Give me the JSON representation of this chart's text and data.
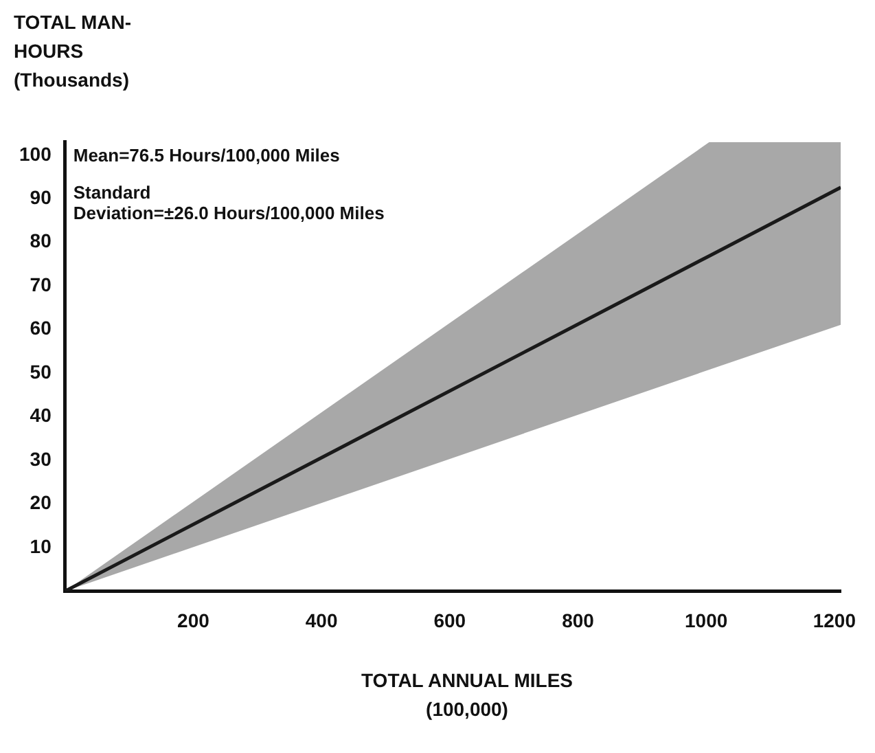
{
  "chart_data": {
    "type": "line",
    "xlabel": "TOTAL ANNUAL MILES (100,000)",
    "ylabel": "TOTAL MAN-HOURS (Thousands)",
    "x": [
      0,
      1005,
      1210
    ],
    "series": [
      {
        "color": "#1a1a1a",
        "values": [
          0,
          76.9,
          92.6
        ],
        "lower": [
          0,
          50.8,
          61.1
        ],
        "upper": [
          0,
          103,
          103
        ]
      }
    ],
    "xlim": [
      0,
      1210
    ],
    "xticks": [
      200,
      400,
      600,
      800,
      1000,
      1200
    ],
    "ylim": [
      0,
      103
    ],
    "yticks": [
      10,
      20,
      30,
      40,
      50,
      60,
      70,
      80,
      90,
      100
    ],
    "grid": false,
    "legend": false,
    "marker": "none",
    "line_style": "solid",
    "annotations": [
      "Mean=76.5 Hours/100,000 Miles",
      "Standard Deviation=±26.0 Hours/100,000 Miles"
    ]
  }
}
